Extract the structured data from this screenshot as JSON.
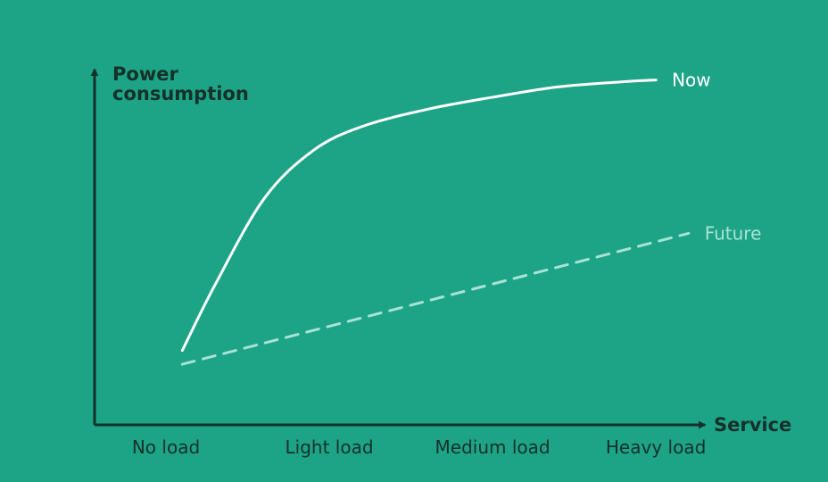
{
  "chart_data": {
    "type": "line",
    "title": "",
    "xlabel": "Service",
    "ylabel_lines": [
      "Power",
      "consumption"
    ],
    "categories": [
      "No load",
      "Light load",
      "Medium load",
      "Heavy load"
    ],
    "xlim": [
      0,
      3.3
    ],
    "ylim": [
      0,
      10
    ],
    "grid": false,
    "series": [
      {
        "name": "Now",
        "style": "solid",
        "color": "#ffffff",
        "x": [
          0.1,
          0.3,
          0.6,
          0.9,
          1.2,
          1.6,
          2.0,
          2.4,
          2.8,
          3.0
        ],
        "y": [
          1.9,
          3.8,
          6.3,
          7.7,
          8.4,
          8.9,
          9.25,
          9.55,
          9.7,
          9.75
        ]
      },
      {
        "name": "Future",
        "style": "dashed",
        "color": "#a9e3d4",
        "x": [
          0.1,
          3.2
        ],
        "y": [
          1.5,
          5.3
        ]
      }
    ]
  }
}
